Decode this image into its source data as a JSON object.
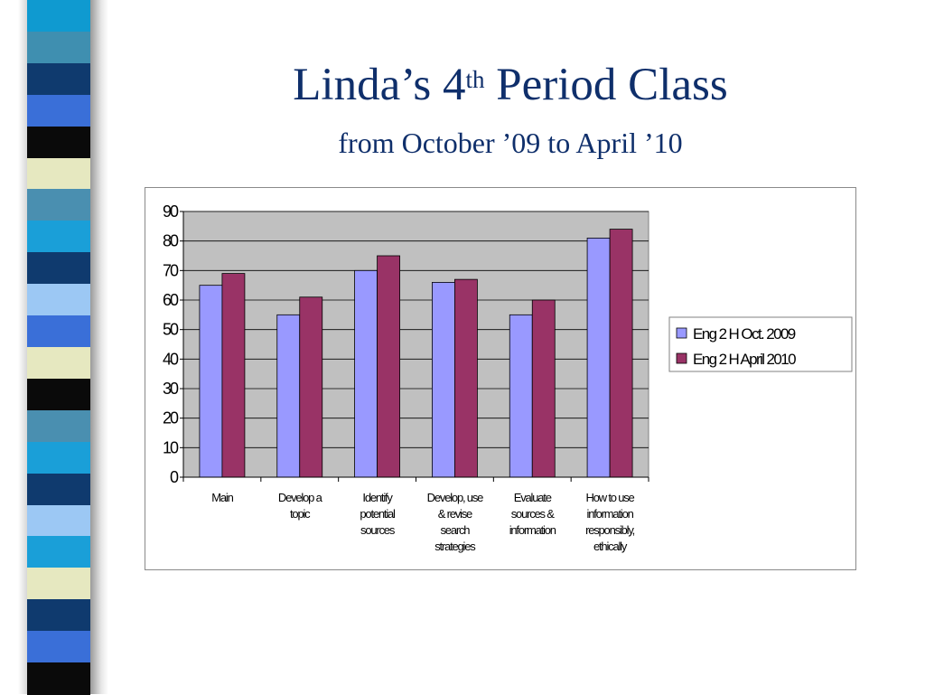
{
  "slide": {
    "title_main": "Linda’s 4",
    "title_sup": "th",
    "title_rest": " Period Class",
    "subtitle": "from October ’09 to April ’10"
  },
  "colors": {
    "title": "#0f2f6b",
    "plot_bg": "#c0c0c0",
    "series_1": "#9999ff",
    "series_2": "#993366",
    "stripe": [
      "#0f9ad0",
      "#3f8fb0",
      "#0f3a6e",
      "#3a6fd8",
      "#0a0a0a",
      "#e6e8c0",
      "#4a8fb0",
      "#1a9fd8",
      "#0f3a6e",
      "#9cc8f4",
      "#3a6fd8",
      "#e6e8c0",
      "#0a0a0a",
      "#4a8fb0",
      "#1a9fd8",
      "#0f3a6e",
      "#9cc8f4",
      "#1a9fd8",
      "#e6e8c0",
      "#0f3a6e",
      "#3a6fd8",
      "#0a0a0a"
    ]
  },
  "chart_data": {
    "type": "bar",
    "categories": [
      [
        "Main"
      ],
      [
        "Develop a",
        "topic"
      ],
      [
        "Identify",
        "potential",
        "sources"
      ],
      [
        "Develop, use",
        "& revise",
        "search",
        "strategies"
      ],
      [
        "Evaluate",
        "sources &",
        "information"
      ],
      [
        "How to use",
        "information",
        "responsibly,",
        "ethically"
      ]
    ],
    "series": [
      {
        "name": "Eng 2 H Oct. 2009",
        "values": [
          65,
          55,
          70,
          66,
          55,
          81
        ]
      },
      {
        "name": "Eng 2 H April 2010",
        "values": [
          69,
          61,
          75,
          67,
          60,
          84
        ]
      }
    ],
    "ylim": [
      0,
      90
    ],
    "yticks": [
      "0",
      "10",
      "20",
      "30",
      "40",
      "50",
      "60",
      "70",
      "80",
      "90"
    ],
    "grid": true,
    "legend_position": "right"
  }
}
